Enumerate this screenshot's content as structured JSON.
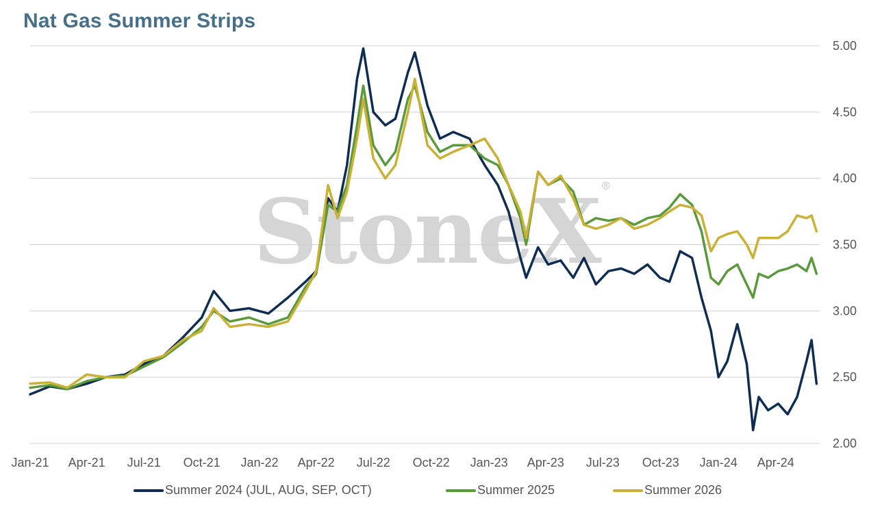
{
  "title": "Nat Gas Summer Strips",
  "watermark": "StoneX",
  "colors": {
    "s2024": "#0f2d52",
    "s2025": "#5b9a3c",
    "s2026": "#c9b037",
    "grid": "#d0d0d0",
    "title": "#46708a"
  },
  "legend": [
    {
      "label": "Summer 2024 (JUL, AUG, SEP, OCT)",
      "color": "#0f2d52"
    },
    {
      "label": "Summer 2025",
      "color": "#5b9a3c"
    },
    {
      "label": "Summer 2026",
      "color": "#c9b037"
    }
  ],
  "chart_data": {
    "type": "line",
    "title": "Nat Gas Summer Strips",
    "xlabel": "",
    "ylabel": "",
    "ylim": [
      2.0,
      5.0
    ],
    "y_ticks": [
      "5.00",
      "4.50",
      "4.00",
      "3.50",
      "3.00",
      "2.50",
      "2.00"
    ],
    "x_ticks": [
      "Jan-21",
      "Apr-21",
      "Jul-21",
      "Oct-21",
      "Jan-22",
      "Apr-22",
      "Jul-22",
      "Oct-22",
      "Jan-23",
      "Apr-23",
      "Jul-23",
      "Oct-23",
      "Jan-24",
      "Apr-24"
    ],
    "grid": true,
    "legend_position": "bottom",
    "series": [
      {
        "name": "Summer 2024 (JUL, AUG, SEP, OCT)",
        "points": [
          [
            "2021-01-01",
            2.37
          ],
          [
            "2021-02-01",
            2.43
          ],
          [
            "2021-03-01",
            2.41
          ],
          [
            "2021-04-01",
            2.45
          ],
          [
            "2021-05-01",
            2.5
          ],
          [
            "2021-06-01",
            2.52
          ],
          [
            "2021-07-01",
            2.6
          ],
          [
            "2021-08-01",
            2.66
          ],
          [
            "2021-09-01",
            2.8
          ],
          [
            "2021-10-01",
            2.95
          ],
          [
            "2021-10-20",
            3.15
          ],
          [
            "2021-11-15",
            3.0
          ],
          [
            "2021-12-15",
            3.02
          ],
          [
            "2022-01-15",
            2.98
          ],
          [
            "2022-02-15",
            3.1
          ],
          [
            "2022-03-15",
            3.22
          ],
          [
            "2022-04-01",
            3.3
          ],
          [
            "2022-04-20",
            3.85
          ],
          [
            "2022-05-05",
            3.75
          ],
          [
            "2022-05-20",
            4.1
          ],
          [
            "2022-06-05",
            4.75
          ],
          [
            "2022-06-15",
            4.98
          ],
          [
            "2022-07-01",
            4.5
          ],
          [
            "2022-07-20",
            4.4
          ],
          [
            "2022-08-05",
            4.45
          ],
          [
            "2022-08-25",
            4.8
          ],
          [
            "2022-09-05",
            4.95
          ],
          [
            "2022-09-25",
            4.55
          ],
          [
            "2022-10-15",
            4.3
          ],
          [
            "2022-11-05",
            4.35
          ],
          [
            "2022-12-01",
            4.3
          ],
          [
            "2022-12-25",
            4.1
          ],
          [
            "2023-01-15",
            3.95
          ],
          [
            "2023-02-01",
            3.75
          ],
          [
            "2023-02-20",
            3.4
          ],
          [
            "2023-03-01",
            3.25
          ],
          [
            "2023-03-20",
            3.48
          ],
          [
            "2023-04-05",
            3.35
          ],
          [
            "2023-04-25",
            3.38
          ],
          [
            "2023-05-15",
            3.25
          ],
          [
            "2023-06-01",
            3.4
          ],
          [
            "2023-06-20",
            3.2
          ],
          [
            "2023-07-10",
            3.3
          ],
          [
            "2023-07-30",
            3.32
          ],
          [
            "2023-08-20",
            3.28
          ],
          [
            "2023-09-10",
            3.35
          ],
          [
            "2023-09-30",
            3.25
          ],
          [
            "2023-10-15",
            3.22
          ],
          [
            "2023-11-01",
            3.45
          ],
          [
            "2023-11-20",
            3.4
          ],
          [
            "2023-12-05",
            3.1
          ],
          [
            "2023-12-20",
            2.85
          ],
          [
            "2024-01-01",
            2.5
          ],
          [
            "2024-01-15",
            2.62
          ],
          [
            "2024-01-31",
            2.9
          ],
          [
            "2024-02-15",
            2.6
          ],
          [
            "2024-02-25",
            2.1
          ],
          [
            "2024-03-05",
            2.35
          ],
          [
            "2024-03-20",
            2.25
          ],
          [
            "2024-04-05",
            2.3
          ],
          [
            "2024-04-20",
            2.22
          ],
          [
            "2024-05-05",
            2.35
          ],
          [
            "2024-05-20",
            2.62
          ],
          [
            "2024-05-28",
            2.78
          ],
          [
            "2024-06-05",
            2.45
          ]
        ]
      },
      {
        "name": "Summer 2025",
        "points": [
          [
            "2021-01-01",
            2.42
          ],
          [
            "2021-02-01",
            2.44
          ],
          [
            "2021-03-01",
            2.41
          ],
          [
            "2021-04-01",
            2.47
          ],
          [
            "2021-05-01",
            2.5
          ],
          [
            "2021-06-01",
            2.51
          ],
          [
            "2021-07-01",
            2.58
          ],
          [
            "2021-08-01",
            2.65
          ],
          [
            "2021-09-01",
            2.76
          ],
          [
            "2021-10-01",
            2.88
          ],
          [
            "2021-10-20",
            3.0
          ],
          [
            "2021-11-15",
            2.92
          ],
          [
            "2021-12-15",
            2.95
          ],
          [
            "2022-01-15",
            2.9
          ],
          [
            "2022-02-15",
            2.95
          ],
          [
            "2022-03-15",
            3.18
          ],
          [
            "2022-04-01",
            3.28
          ],
          [
            "2022-04-20",
            3.8
          ],
          [
            "2022-05-05",
            3.75
          ],
          [
            "2022-05-20",
            3.95
          ],
          [
            "2022-06-05",
            4.4
          ],
          [
            "2022-06-15",
            4.7
          ],
          [
            "2022-07-01",
            4.25
          ],
          [
            "2022-07-20",
            4.1
          ],
          [
            "2022-08-05",
            4.2
          ],
          [
            "2022-08-25",
            4.6
          ],
          [
            "2022-09-05",
            4.7
          ],
          [
            "2022-09-25",
            4.35
          ],
          [
            "2022-10-15",
            4.2
          ],
          [
            "2022-11-05",
            4.25
          ],
          [
            "2022-12-01",
            4.25
          ],
          [
            "2022-12-25",
            4.15
          ],
          [
            "2023-01-15",
            4.1
          ],
          [
            "2023-02-01",
            3.95
          ],
          [
            "2023-02-20",
            3.7
          ],
          [
            "2023-03-01",
            3.5
          ],
          [
            "2023-03-20",
            4.05
          ],
          [
            "2023-04-05",
            3.95
          ],
          [
            "2023-04-25",
            4.0
          ],
          [
            "2023-05-15",
            3.9
          ],
          [
            "2023-06-01",
            3.65
          ],
          [
            "2023-06-20",
            3.7
          ],
          [
            "2023-07-10",
            3.68
          ],
          [
            "2023-07-30",
            3.7
          ],
          [
            "2023-08-20",
            3.65
          ],
          [
            "2023-09-10",
            3.7
          ],
          [
            "2023-09-30",
            3.72
          ],
          [
            "2023-10-15",
            3.78
          ],
          [
            "2023-11-01",
            3.88
          ],
          [
            "2023-11-20",
            3.8
          ],
          [
            "2023-12-05",
            3.6
          ],
          [
            "2023-12-20",
            3.25
          ],
          [
            "2024-01-01",
            3.2
          ],
          [
            "2024-01-15",
            3.3
          ],
          [
            "2024-01-31",
            3.35
          ],
          [
            "2024-02-15",
            3.2
          ],
          [
            "2024-02-25",
            3.1
          ],
          [
            "2024-03-05",
            3.28
          ],
          [
            "2024-03-20",
            3.25
          ],
          [
            "2024-04-05",
            3.3
          ],
          [
            "2024-04-20",
            3.32
          ],
          [
            "2024-05-05",
            3.35
          ],
          [
            "2024-05-20",
            3.3
          ],
          [
            "2024-05-28",
            3.4
          ],
          [
            "2024-06-05",
            3.28
          ]
        ]
      },
      {
        "name": "Summer 2026",
        "points": [
          [
            "2021-01-01",
            2.45
          ],
          [
            "2021-02-01",
            2.46
          ],
          [
            "2021-03-01",
            2.42
          ],
          [
            "2021-04-01",
            2.52
          ],
          [
            "2021-05-01",
            2.5
          ],
          [
            "2021-06-01",
            2.5
          ],
          [
            "2021-07-01",
            2.62
          ],
          [
            "2021-08-01",
            2.66
          ],
          [
            "2021-09-01",
            2.78
          ],
          [
            "2021-10-01",
            2.85
          ],
          [
            "2021-10-20",
            3.02
          ],
          [
            "2021-11-15",
            2.88
          ],
          [
            "2021-12-15",
            2.9
          ],
          [
            "2022-01-15",
            2.88
          ],
          [
            "2022-02-15",
            2.92
          ],
          [
            "2022-03-15",
            3.15
          ],
          [
            "2022-04-01",
            3.3
          ],
          [
            "2022-04-20",
            3.95
          ],
          [
            "2022-05-05",
            3.7
          ],
          [
            "2022-05-20",
            3.9
          ],
          [
            "2022-06-05",
            4.3
          ],
          [
            "2022-06-15",
            4.6
          ],
          [
            "2022-07-01",
            4.15
          ],
          [
            "2022-07-20",
            4.0
          ],
          [
            "2022-08-05",
            4.1
          ],
          [
            "2022-08-25",
            4.5
          ],
          [
            "2022-09-05",
            4.75
          ],
          [
            "2022-09-25",
            4.25
          ],
          [
            "2022-10-15",
            4.15
          ],
          [
            "2022-11-05",
            4.2
          ],
          [
            "2022-12-01",
            4.25
          ],
          [
            "2022-12-25",
            4.3
          ],
          [
            "2023-01-15",
            4.15
          ],
          [
            "2023-02-01",
            3.95
          ],
          [
            "2023-02-20",
            3.75
          ],
          [
            "2023-03-01",
            3.55
          ],
          [
            "2023-03-20",
            4.05
          ],
          [
            "2023-04-05",
            3.95
          ],
          [
            "2023-04-25",
            4.02
          ],
          [
            "2023-05-15",
            3.85
          ],
          [
            "2023-06-01",
            3.65
          ],
          [
            "2023-06-20",
            3.62
          ],
          [
            "2023-07-10",
            3.65
          ],
          [
            "2023-07-30",
            3.7
          ],
          [
            "2023-08-20",
            3.62
          ],
          [
            "2023-09-10",
            3.65
          ],
          [
            "2023-09-30",
            3.7
          ],
          [
            "2023-10-15",
            3.75
          ],
          [
            "2023-11-01",
            3.8
          ],
          [
            "2023-11-20",
            3.78
          ],
          [
            "2023-12-05",
            3.72
          ],
          [
            "2023-12-20",
            3.45
          ],
          [
            "2024-01-01",
            3.55
          ],
          [
            "2024-01-15",
            3.58
          ],
          [
            "2024-01-31",
            3.6
          ],
          [
            "2024-02-15",
            3.5
          ],
          [
            "2024-02-25",
            3.4
          ],
          [
            "2024-03-05",
            3.55
          ],
          [
            "2024-03-20",
            3.55
          ],
          [
            "2024-04-05",
            3.55
          ],
          [
            "2024-04-20",
            3.6
          ],
          [
            "2024-05-05",
            3.72
          ],
          [
            "2024-05-20",
            3.7
          ],
          [
            "2024-05-28",
            3.72
          ],
          [
            "2024-06-05",
            3.6
          ]
        ]
      }
    ]
  }
}
